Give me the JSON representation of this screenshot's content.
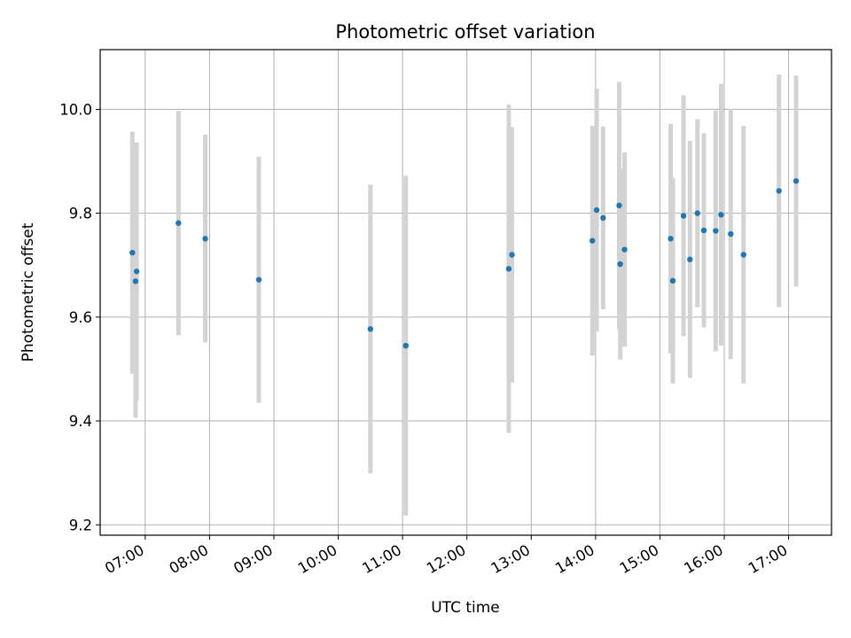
{
  "chart_data": {
    "type": "scatter",
    "title": "Photometric offset variation",
    "xlabel": "UTC time",
    "ylabel": "Photometric offset",
    "xlim": [
      "06:18",
      "17:40"
    ],
    "ylim": [
      9.18,
      10.115
    ],
    "grid": true,
    "x_ticks": [
      "07:00",
      "08:00",
      "09:00",
      "10:00",
      "11:00",
      "12:00",
      "13:00",
      "14:00",
      "15:00",
      "16:00",
      "17:00"
    ],
    "y_ticks": [
      "9.2",
      "9.4",
      "9.6",
      "9.8",
      "10.0"
    ],
    "points": [
      {
        "time": "06:48",
        "value": 9.724,
        "error": 0.233
      },
      {
        "time": "06:51",
        "value": 9.669,
        "error": 0.263
      },
      {
        "time": "06:52",
        "value": 9.688,
        "error": 0.248
      },
      {
        "time": "07:31",
        "value": 9.781,
        "error": 0.216
      },
      {
        "time": "07:56",
        "value": 9.751,
        "error": 0.2
      },
      {
        "time": "08:46",
        "value": 9.672,
        "error": 0.237
      },
      {
        "time": "10:30",
        "value": 9.577,
        "error": 0.278
      },
      {
        "time": "11:03",
        "value": 9.545,
        "error": 0.327
      },
      {
        "time": "12:39",
        "value": 9.693,
        "error": 0.316
      },
      {
        "time": "12:42",
        "value": 9.72,
        "error": 0.246
      },
      {
        "time": "13:57",
        "value": 9.747,
        "error": 0.221
      },
      {
        "time": "14:01",
        "value": 9.806,
        "error": 0.234
      },
      {
        "time": "14:07",
        "value": 9.791,
        "error": 0.176
      },
      {
        "time": "14:22",
        "value": 9.815,
        "error": 0.238
      },
      {
        "time": "14:23",
        "value": 9.702,
        "error": 0.184
      },
      {
        "time": "14:27",
        "value": 9.73,
        "error": 0.187
      },
      {
        "time": "15:10",
        "value": 9.751,
        "error": 0.221
      },
      {
        "time": "15:12",
        "value": 9.67,
        "error": 0.198
      },
      {
        "time": "15:22",
        "value": 9.795,
        "error": 0.232
      },
      {
        "time": "15:28",
        "value": 9.711,
        "error": 0.228
      },
      {
        "time": "15:35",
        "value": 9.8,
        "error": 0.181
      },
      {
        "time": "15:41",
        "value": 9.767,
        "error": 0.187
      },
      {
        "time": "15:52",
        "value": 9.766,
        "error": 0.232
      },
      {
        "time": "15:57",
        "value": 9.797,
        "error": 0.252
      },
      {
        "time": "16:06",
        "value": 9.76,
        "error": 0.241
      },
      {
        "time": "16:18",
        "value": 9.72,
        "error": 0.248
      },
      {
        "time": "16:51",
        "value": 9.843,
        "error": 0.224
      },
      {
        "time": "17:07",
        "value": 9.862,
        "error": 0.203
      }
    ],
    "colors": {
      "point": "#1f77b4",
      "errorbar": "#d3d3d3",
      "grid": "#b0b0b0",
      "axis": "#000000"
    }
  }
}
